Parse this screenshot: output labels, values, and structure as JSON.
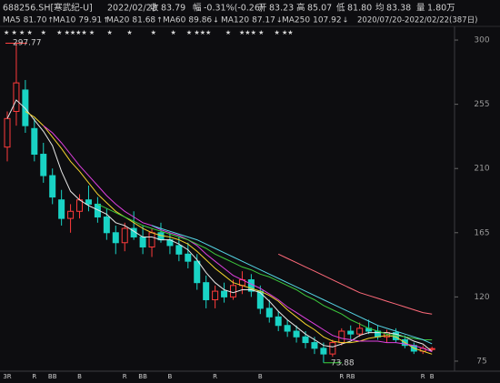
{
  "quote": {
    "code": "688256.SH[寒武纪-U]",
    "date": "2022/02/22",
    "fields": [
      {
        "label": "收",
        "value": "83.79",
        "color": "#3cd33c"
      },
      {
        "label": "幅",
        "value": "-0.31%(-0.26)",
        "color": "#3cd33c"
      },
      {
        "label": "开",
        "value": "83.23",
        "color": "#3cd33c"
      },
      {
        "label": "高",
        "value": "85.07",
        "color": "#ff4040"
      },
      {
        "label": "低",
        "value": "81.80",
        "color": "#3cd33c"
      },
      {
        "label": "均",
        "value": "83.38",
        "color": "#3cd33c"
      },
      {
        "label": "量",
        "value": "1.80万",
        "color": "#e0e0e0"
      }
    ]
  },
  "range_text": "2020/07/20-2022/02/22(387日)",
  "chart_data": {
    "type": "candlestick",
    "ylim": [
      70,
      305
    ],
    "yticks": [
      75,
      120,
      165,
      210,
      255,
      300
    ],
    "up_color": "#ff3b3b",
    "down_color": "#19d3c5",
    "candles": [
      {
        "open": 225,
        "high": 250,
        "low": 215,
        "close": 245
      },
      {
        "open": 250,
        "high": 297.77,
        "low": 240,
        "close": 270
      },
      {
        "open": 265,
        "high": 272,
        "low": 235,
        "close": 240
      },
      {
        "open": 238,
        "high": 245,
        "low": 215,
        "close": 220
      },
      {
        "open": 220,
        "high": 228,
        "low": 200,
        "close": 205
      },
      {
        "open": 205,
        "high": 210,
        "low": 185,
        "close": 190
      },
      {
        "open": 188,
        "high": 195,
        "low": 170,
        "close": 175
      },
      {
        "open": 175,
        "high": 185,
        "low": 165,
        "close": 180
      },
      {
        "open": 180,
        "high": 192,
        "low": 175,
        "close": 188
      },
      {
        "open": 188,
        "high": 198,
        "low": 180,
        "close": 185
      },
      {
        "open": 185,
        "high": 190,
        "low": 172,
        "close": 176
      },
      {
        "open": 176,
        "high": 182,
        "low": 160,
        "close": 165
      },
      {
        "open": 165,
        "high": 170,
        "low": 150,
        "close": 158
      },
      {
        "open": 158,
        "high": 172,
        "low": 152,
        "close": 168
      },
      {
        "open": 168,
        "high": 180,
        "low": 160,
        "close": 162
      },
      {
        "open": 162,
        "high": 170,
        "low": 150,
        "close": 155
      },
      {
        "open": 155,
        "high": 168,
        "low": 148,
        "close": 165
      },
      {
        "open": 165,
        "high": 172,
        "low": 158,
        "close": 160
      },
      {
        "open": 160,
        "high": 165,
        "low": 150,
        "close": 156
      },
      {
        "open": 156,
        "high": 162,
        "low": 145,
        "close": 150
      },
      {
        "open": 150,
        "high": 158,
        "low": 140,
        "close": 145
      },
      {
        "open": 145,
        "high": 150,
        "low": 125,
        "close": 130
      },
      {
        "open": 130,
        "high": 135,
        "low": 112,
        "close": 118
      },
      {
        "open": 118,
        "high": 128,
        "low": 112,
        "close": 124
      },
      {
        "open": 124,
        "high": 130,
        "low": 116,
        "close": 120
      },
      {
        "open": 120,
        "high": 132,
        "low": 118,
        "close": 128
      },
      {
        "open": 128,
        "high": 138,
        "low": 122,
        "close": 132
      },
      {
        "open": 132,
        "high": 136,
        "low": 120,
        "close": 124
      },
      {
        "open": 124,
        "high": 128,
        "low": 108,
        "close": 112
      },
      {
        "open": 112,
        "high": 118,
        "low": 102,
        "close": 106
      },
      {
        "open": 106,
        "high": 110,
        "low": 96,
        "close": 100
      },
      {
        "open": 100,
        "high": 104,
        "low": 92,
        "close": 96
      },
      {
        "open": 96,
        "high": 100,
        "low": 88,
        "close": 92
      },
      {
        "open": 92,
        "high": 96,
        "low": 84,
        "close": 88
      },
      {
        "open": 88,
        "high": 92,
        "low": 80,
        "close": 84
      },
      {
        "open": 84,
        "high": 88,
        "low": 73.88,
        "close": 80
      },
      {
        "open": 80,
        "high": 90,
        "low": 78,
        "close": 88
      },
      {
        "open": 88,
        "high": 98,
        "low": 86,
        "close": 96
      },
      {
        "open": 96,
        "high": 100,
        "low": 90,
        "close": 94
      },
      {
        "open": 94,
        "high": 102,
        "low": 92,
        "close": 98
      },
      {
        "open": 98,
        "high": 104,
        "low": 94,
        "close": 96
      },
      {
        "open": 96,
        "high": 100,
        "low": 90,
        "close": 92
      },
      {
        "open": 92,
        "high": 97,
        "low": 88,
        "close": 95
      },
      {
        "open": 95,
        "high": 98,
        "low": 88,
        "close": 90
      },
      {
        "open": 90,
        "high": 93,
        "low": 84,
        "close": 86
      },
      {
        "open": 86,
        "high": 88,
        "low": 80,
        "close": 82
      },
      {
        "open": 82,
        "high": 86,
        "low": 80,
        "close": 84
      },
      {
        "open": 83.23,
        "high": 85.07,
        "low": 81.8,
        "close": 83.79
      }
    ],
    "series": [
      {
        "name": "MA5",
        "last_label": "81.70",
        "trend": "↑",
        "color": "#e8e8e8",
        "values": [
          245,
          258,
          252,
          244,
          236,
          226,
          208,
          194,
          188,
          184,
          181,
          178,
          172,
          170,
          166,
          162,
          162,
          160,
          160,
          157,
          153,
          146,
          137,
          130,
          125,
          123,
          125,
          125,
          123,
          117,
          110,
          104,
          99,
          94,
          90,
          86,
          85,
          87,
          89,
          93,
          95,
          95,
          95,
          94,
          92,
          89,
          87,
          81.7
        ]
      },
      {
        "name": "MA10",
        "last_label": "79.91",
        "trend": "↑",
        "color": "#f2d12e",
        "values": [
          null,
          null,
          250,
          246,
          240,
          232,
          224,
          215,
          208,
          200,
          192,
          186,
          180,
          176,
          172,
          168,
          165,
          163,
          162,
          160,
          157,
          152,
          146,
          140,
          135,
          130,
          128,
          126,
          124,
          121,
          117,
          111,
          106,
          101,
          97,
          92,
          89,
          88,
          88,
          89,
          91,
          92,
          93,
          92,
          88,
          84,
          82,
          79.91
        ]
      },
      {
        "name": "MA20",
        "last_label": "81.68",
        "trend": "↑",
        "color": "#e040e0",
        "values": [
          null,
          null,
          null,
          null,
          240,
          235,
          228,
          220,
          212,
          205,
          198,
          191,
          185,
          180,
          176,
          172,
          170,
          167,
          165,
          163,
          160,
          156,
          150,
          145,
          140,
          135,
          132,
          129,
          126,
          122,
          118,
          113,
          109,
          105,
          101,
          97,
          93,
          91,
          90,
          89,
          89,
          89,
          88,
          88,
          87,
          86,
          84,
          81.68
        ]
      },
      {
        "name": "MA60",
        "last_label": "89.86",
        "trend": "↓",
        "color": "#3cc83c",
        "values": [
          null,
          null,
          null,
          null,
          null,
          null,
          null,
          null,
          null,
          null,
          185,
          182,
          179,
          176,
          173,
          170,
          168,
          166,
          164,
          162,
          160,
          157,
          154,
          150,
          147,
          144,
          141,
          139,
          136,
          134,
          131,
          128,
          125,
          121,
          118,
          114,
          111,
          108,
          104,
          101,
          98,
          96,
          94,
          93,
          92,
          91,
          90,
          89.86
        ]
      },
      {
        "name": "MA120",
        "last_label": "87.17",
        "trend": "↓",
        "color": "#56d6e6",
        "values": [
          null,
          null,
          null,
          null,
          null,
          null,
          null,
          null,
          null,
          null,
          null,
          null,
          null,
          null,
          null,
          null,
          170,
          168,
          166,
          164,
          162,
          160,
          157,
          154,
          151,
          148,
          145,
          142,
          139,
          136,
          133,
          130,
          127,
          124,
          121,
          118,
          115,
          112,
          109,
          106,
          103,
          100,
          98,
          96,
          94,
          92,
          90,
          87.17
        ]
      },
      {
        "name": "MA250",
        "last_label": "107.92",
        "trend": "↓",
        "color": "#ff6a7a",
        "values": [
          null,
          null,
          null,
          null,
          null,
          null,
          null,
          null,
          null,
          null,
          null,
          null,
          null,
          null,
          null,
          null,
          null,
          null,
          null,
          null,
          null,
          null,
          null,
          null,
          null,
          null,
          null,
          null,
          null,
          null,
          150,
          147,
          144,
          141,
          138,
          135,
          132,
          129,
          126,
          123,
          121,
          119,
          117,
          115,
          113,
          111,
          109,
          107.92
        ]
      }
    ],
    "markers": [
      {
        "index": 0,
        "label": "3R"
      },
      {
        "index": 3,
        "label": "R"
      },
      {
        "index": 5,
        "label": "BB"
      },
      {
        "index": 8,
        "label": "B"
      },
      {
        "index": 13,
        "label": "R"
      },
      {
        "index": 15,
        "label": "BB"
      },
      {
        "index": 18,
        "label": "B"
      },
      {
        "index": 23,
        "label": "R"
      },
      {
        "index": 28,
        "label": "B"
      },
      {
        "index": 37,
        "label": "R"
      },
      {
        "index": 38,
        "label": "RB"
      },
      {
        "index": 46,
        "label": "R"
      },
      {
        "index": 47,
        "label": "B"
      }
    ]
  }
}
